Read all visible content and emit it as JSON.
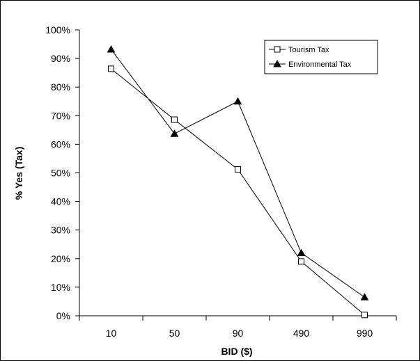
{
  "chart_data": {
    "type": "line",
    "title": "",
    "xlabel": "BID ($)",
    "ylabel": "% Yes (Tax)",
    "categories": [
      "10",
      "50",
      "90",
      "490",
      "990"
    ],
    "ylim": [
      0,
      1
    ],
    "y_tick_labels": [
      "0%",
      "10%",
      "20%",
      "30%",
      "40%",
      "50%",
      "60%",
      "70%",
      "80%",
      "90%",
      "100%"
    ],
    "grid": false,
    "legend_position": "top-right",
    "series": [
      {
        "name": "Tourism Tax",
        "marker": "open-square",
        "color": "#000000",
        "values": [
          0.864,
          0.686,
          0.512,
          0.19,
          0.003
        ]
      },
      {
        "name": "Environmental Tax",
        "marker": "filled-triangle",
        "color": "#000000",
        "values": [
          0.932,
          0.637,
          0.75,
          0.22,
          0.065
        ]
      }
    ]
  }
}
